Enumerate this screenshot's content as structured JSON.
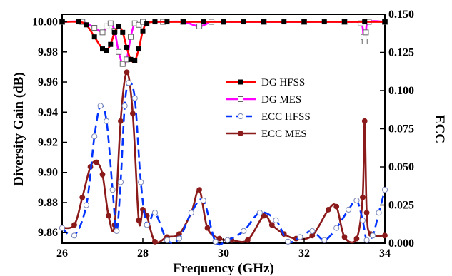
{
  "chart_data": {
    "type": "line",
    "xlabel": "Frequency (GHz)",
    "ylabel": "Diversity Gain (dB)",
    "y2label": "ECC",
    "xlim": [
      26,
      34
    ],
    "ylim": [
      9.853,
      10.005
    ],
    "y2lim": [
      0.0,
      0.15
    ],
    "xticks": [
      "26",
      "28",
      "30",
      "32",
      "34"
    ],
    "yticks": [
      "9.86",
      "9.88",
      "9.90",
      "9.92",
      "9.94",
      "9.96",
      "9.98",
      "10.00"
    ],
    "y2ticks": [
      "0.000",
      "0.025",
      "0.050",
      "0.075",
      "0.100",
      "0.125",
      "0.150"
    ],
    "legend_position": "center-right",
    "series": [
      {
        "name": "DG HFSS",
        "axis": "left",
        "color": "#ff0000",
        "marker": "filled-square",
        "x": [
          26.0,
          26.4,
          26.6,
          26.8,
          27.0,
          27.1,
          27.2,
          27.3,
          27.4,
          27.5,
          27.6,
          27.7,
          27.8,
          27.9,
          28.0,
          28.1,
          28.3,
          28.6,
          29.0,
          29.5,
          30.0,
          30.5,
          31.0,
          31.5,
          32.0,
          32.5,
          33.0,
          33.5,
          34.0
        ],
        "y": [
          10.0,
          10.0,
          9.998,
          9.99,
          9.982,
          9.981,
          9.985,
          9.993,
          9.997,
          9.993,
          9.983,
          9.975,
          9.974,
          9.982,
          9.994,
          9.999,
          10.0,
          10.0,
          10.0,
          10.0,
          10.0,
          10.0,
          10.0,
          10.0,
          10.0,
          10.0,
          10.0,
          10.0,
          10.0
        ]
      },
      {
        "name": "DG MES",
        "axis": "left",
        "color": "#ff00ff",
        "marker": "open-square",
        "x": [
          26.0,
          26.5,
          26.8,
          27.0,
          27.1,
          27.2,
          27.3,
          27.4,
          27.5,
          27.6,
          27.7,
          27.8,
          27.9,
          28.0,
          28.5,
          29.0,
          29.4,
          29.7,
          30.0,
          31.0,
          32.0,
          33.0,
          33.4,
          33.47,
          33.5,
          33.53,
          33.6,
          34.0
        ],
        "y": [
          10.0,
          10.0,
          9.996,
          9.993,
          9.997,
          9.999,
          9.994,
          9.98,
          9.972,
          9.975,
          9.99,
          9.999,
          9.998,
          10.0,
          10.0,
          10.0,
          9.997,
          10.0,
          10.0,
          10.0,
          10.0,
          10.0,
          9.999,
          9.99,
          9.987,
          9.993,
          10.0,
          10.0
        ]
      },
      {
        "name": "ECC HFSS",
        "axis": "right",
        "color": "#0033ff",
        "marker": "open-circle",
        "x": [
          26.0,
          26.3,
          26.6,
          26.8,
          26.95,
          27.1,
          27.25,
          27.35,
          27.45,
          27.55,
          27.65,
          27.8,
          27.95,
          28.1,
          28.3,
          28.6,
          28.9,
          29.2,
          29.5,
          29.8,
          30.1,
          30.5,
          30.9,
          31.3,
          31.6,
          31.9,
          32.2,
          32.5,
          32.8,
          33.1,
          33.3,
          33.45,
          33.55,
          33.7,
          33.85,
          34.0
        ],
        "y": [
          0.01,
          0.005,
          0.025,
          0.07,
          0.09,
          0.08,
          0.035,
          0.008,
          0.04,
          0.09,
          0.105,
          0.095,
          0.04,
          0.012,
          0.02,
          0.002,
          0.003,
          0.02,
          0.028,
          0.001,
          0.002,
          0.008,
          0.02,
          0.015,
          0.001,
          0.004,
          0.008,
          0.002,
          0.01,
          0.022,
          0.028,
          0.015,
          0.002,
          0.005,
          0.02,
          0.035
        ]
      },
      {
        "name": "ECC MES",
        "axis": "right",
        "color": "#8b1a1a",
        "marker": "filled-circle",
        "x": [
          26.0,
          26.3,
          26.5,
          26.7,
          26.85,
          27.0,
          27.15,
          27.3,
          27.45,
          27.6,
          27.75,
          27.9,
          28.0,
          28.1,
          28.3,
          28.6,
          28.9,
          29.2,
          29.4,
          29.6,
          29.9,
          30.2,
          30.6,
          31.0,
          31.2,
          31.5,
          31.8,
          32.2,
          32.6,
          32.8,
          33.0,
          33.3,
          33.45,
          33.5,
          33.55,
          33.65,
          34.0
        ],
        "y": [
          0.01,
          0.012,
          0.03,
          0.05,
          0.053,
          0.045,
          0.018,
          0.012,
          0.08,
          0.112,
          0.085,
          0.015,
          0.022,
          0.018,
          0.001,
          0.004,
          0.006,
          0.02,
          0.035,
          0.01,
          0.003,
          0.002,
          0.002,
          0.018,
          0.012,
          0.006,
          0.003,
          0.005,
          0.022,
          0.024,
          0.004,
          0.003,
          0.03,
          0.08,
          0.02,
          0.006,
          0.005
        ]
      }
    ]
  }
}
